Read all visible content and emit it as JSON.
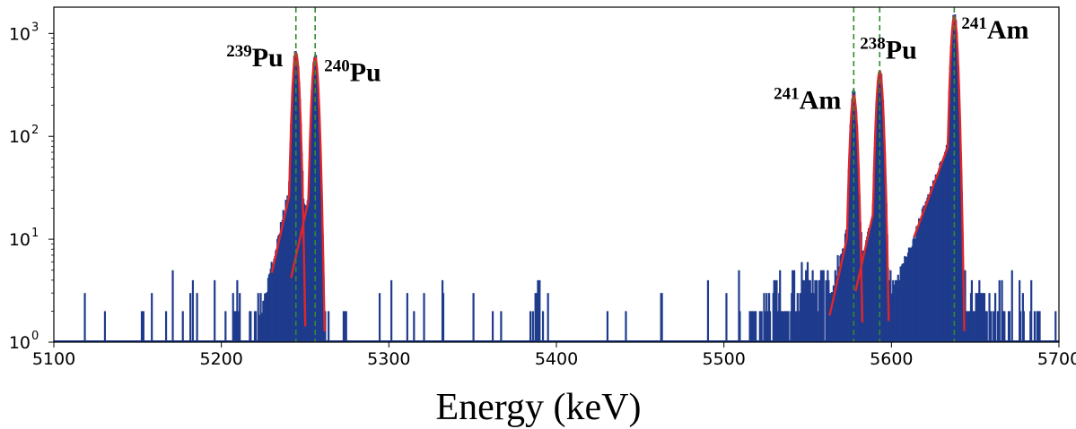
{
  "chart_data": {
    "type": "line",
    "xlabel": "Energy (keV)",
    "ylabel": "",
    "xlim": [
      5100,
      5700
    ],
    "ylim": [
      1,
      1800
    ],
    "yscale": "log",
    "grid": false,
    "x_ticks": [
      5100,
      5200,
      5300,
      5400,
      5500,
      5600,
      5700
    ],
    "y_ticks": [
      {
        "value": 1,
        "base": "10",
        "exp": "0"
      },
      {
        "value": 10,
        "base": "10",
        "exp": "1"
      },
      {
        "value": 100,
        "base": "10",
        "exp": "2"
      },
      {
        "value": 1000,
        "base": "10",
        "exp": "3"
      }
    ],
    "colors": {
      "spectrum": "#1f3b8c",
      "fit": "#e0262b",
      "marker": "#2e8b2e"
    },
    "peaks": [
      {
        "energy": 5244.5,
        "counts": 650,
        "mass": "239",
        "element": "Pu",
        "label_pos": "left"
      },
      {
        "energy": 5256,
        "counts": 580,
        "mass": "240",
        "element": "Pu",
        "label_pos": "right"
      },
      {
        "energy": 5577.5,
        "counts": 250,
        "mass": "241",
        "element": "Am",
        "label_pos": "left"
      },
      {
        "energy": 5593,
        "counts": 430,
        "mass": "238",
        "element": "Pu",
        "label_pos": "above"
      },
      {
        "energy": 5637.5,
        "counts": 1450,
        "mass": "241",
        "element": "Am",
        "label_pos": "right"
      }
    ]
  }
}
